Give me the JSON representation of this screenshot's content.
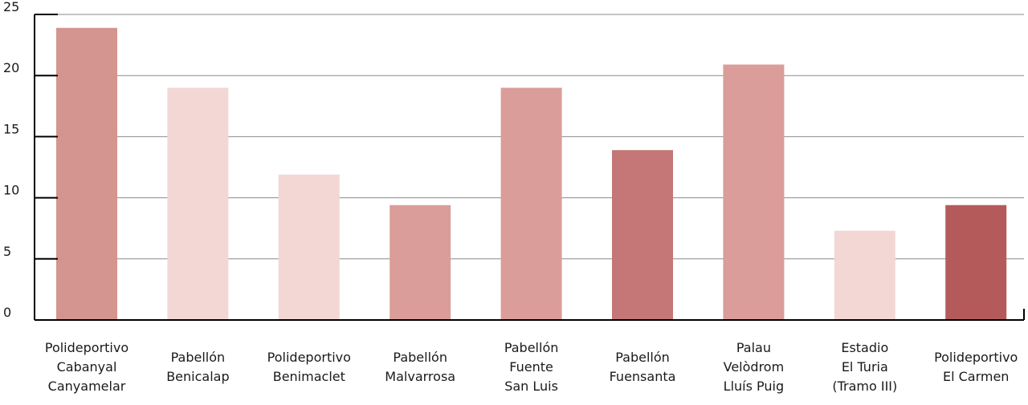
{
  "chart_data": {
    "type": "bar",
    "title": "",
    "xlabel": "",
    "ylabel": "",
    "ylim": [
      0,
      25
    ],
    "yticks": [
      0,
      5,
      10,
      15,
      20,
      25
    ],
    "grid": true,
    "categories": [
      [
        "Polideportivo",
        "Cabanyal",
        "Canyamelar"
      ],
      [
        "Pabellón",
        "Benicalap"
      ],
      [
        "Polideportivo",
        "Benimaclet"
      ],
      [
        "Pabellón",
        "Malvarrosa"
      ],
      [
        "Pabellón",
        "Fuente",
        "San Luis"
      ],
      [
        "Pabellón",
        "Fuensanta"
      ],
      [
        "Palau",
        "Velòdrom",
        "Lluís Puig"
      ],
      [
        "Estadio",
        "El Turia",
        "(Tramo III)"
      ],
      [
        "Polideportivo",
        "El Carmen"
      ]
    ],
    "values": [
      23.9,
      19,
      11.9,
      9.4,
      19,
      13.9,
      20.9,
      7.3,
      9.4
    ],
    "colors": [
      "#d4948f",
      "#f2d7d5",
      "#f2d7d5",
      "#db9d9a",
      "#db9d9a",
      "#c47776",
      "#db9d9a",
      "#f2d7d5",
      "#b55a5a"
    ]
  }
}
